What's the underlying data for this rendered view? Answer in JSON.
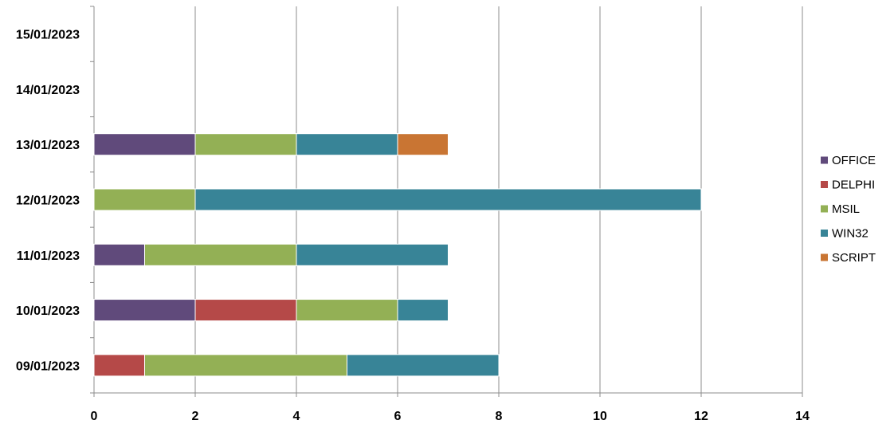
{
  "chart_data": {
    "type": "bar",
    "orientation": "horizontal",
    "stacked": true,
    "categories": [
      "09/01/2023",
      "10/01/2023",
      "11/01/2023",
      "12/01/2023",
      "13/01/2023",
      "14/01/2023",
      "15/01/2023"
    ],
    "series": [
      {
        "name": "OFFICE",
        "color": "#604a7b",
        "values": [
          0,
          2,
          1,
          0,
          2,
          0,
          0
        ]
      },
      {
        "name": "DELPHI",
        "color": "#b54948",
        "values": [
          1,
          2,
          0,
          0,
          0,
          0,
          0
        ]
      },
      {
        "name": "MSIL",
        "color": "#93b055",
        "values": [
          4,
          2,
          3,
          2,
          2,
          0,
          0
        ]
      },
      {
        "name": "WIN32",
        "color": "#388497",
        "values": [
          3,
          1,
          3,
          10,
          2,
          0,
          0
        ]
      },
      {
        "name": "SCRIPT",
        "color": "#c97533",
        "values": [
          0,
          0,
          0,
          0,
          1,
          0,
          0
        ]
      }
    ],
    "xlim": [
      0,
      14
    ],
    "xticks": [
      0,
      2,
      4,
      6,
      8,
      10,
      12,
      14
    ],
    "title": "",
    "xlabel": "",
    "ylabel": "",
    "grid": "vertical",
    "legend": "right"
  }
}
